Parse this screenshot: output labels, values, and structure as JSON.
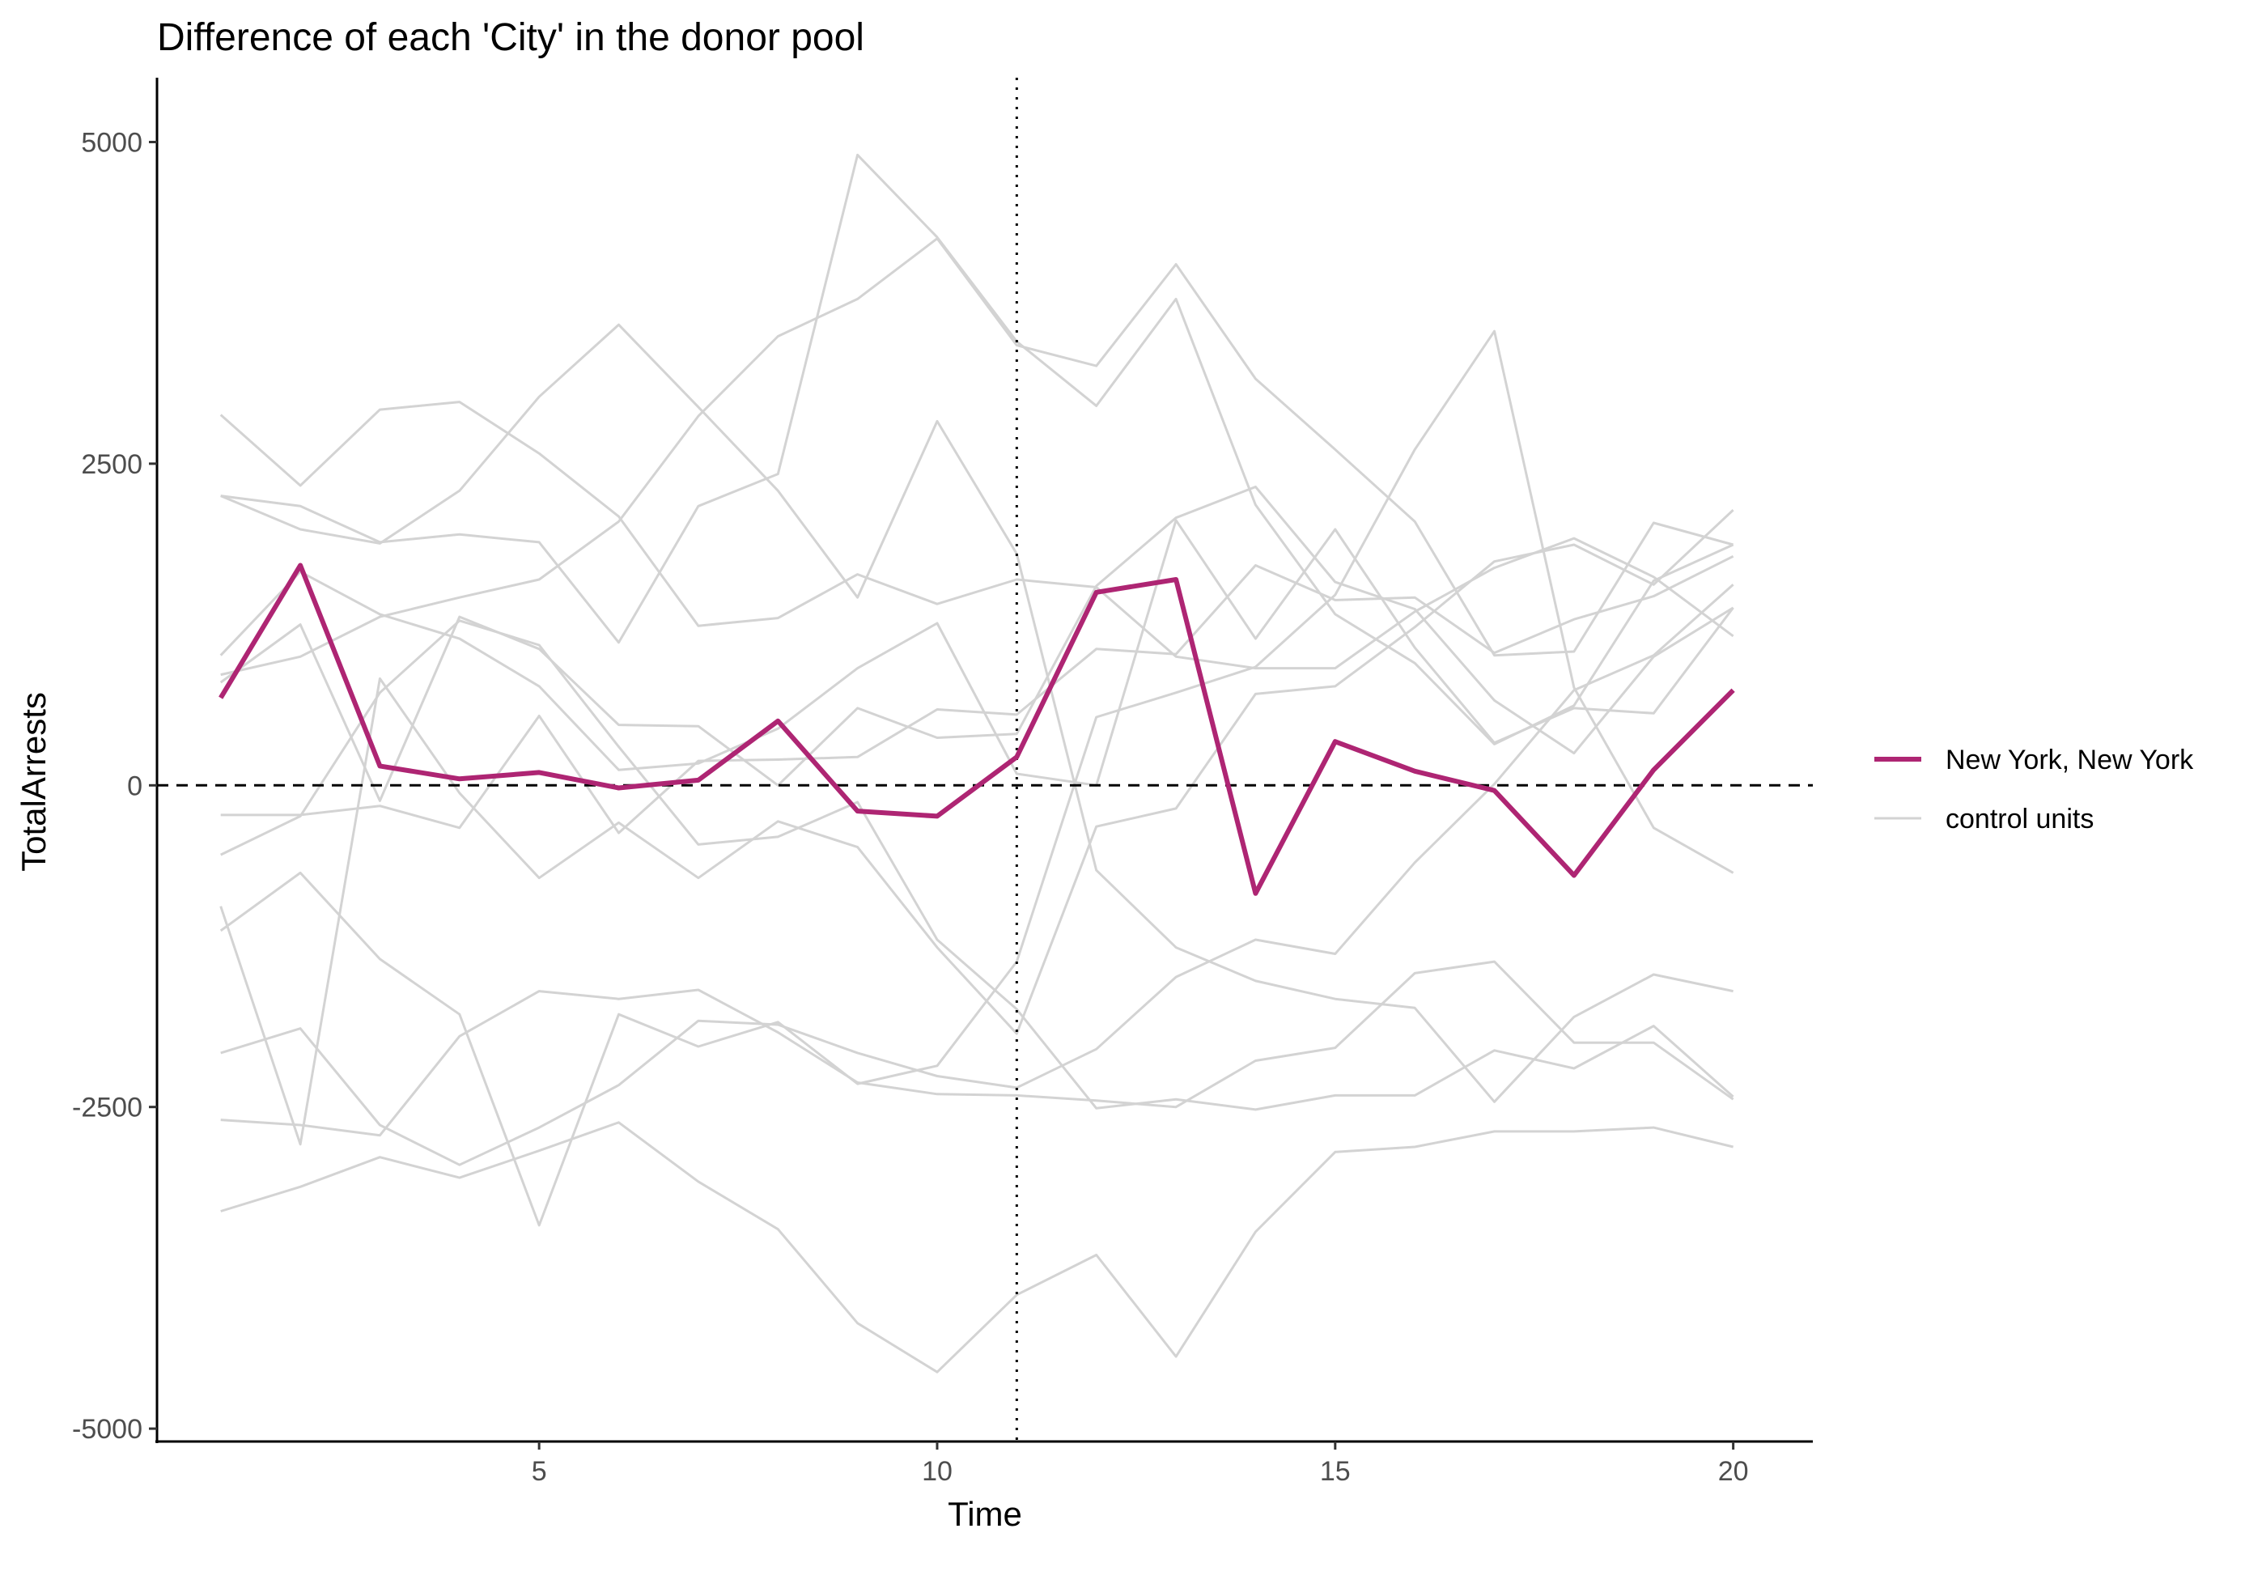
{
  "chart_data": {
    "type": "line",
    "title": "Difference of each 'City' in the donor pool",
    "xlabel": "Time",
    "ylabel": "TotalArrests",
    "xlim": [
      0.2,
      21.0
    ],
    "ylim": [
      -5100,
      5500
    ],
    "x_ticks": [
      5,
      10,
      15,
      20
    ],
    "y_ticks": [
      -5000,
      -2500,
      0,
      2500,
      5000
    ],
    "x_tick_labels": [
      "5",
      "10",
      "15",
      "20"
    ],
    "y_tick_labels": [
      "-5000",
      "-2500",
      "0",
      "2500",
      "5000"
    ],
    "grid": false,
    "legend_position": "right",
    "reference_lines": [
      {
        "orientation": "horizontal",
        "value": 0,
        "style": "dashed"
      },
      {
        "orientation": "vertical",
        "value": 11,
        "style": "dotted"
      }
    ],
    "x": [
      1,
      2,
      3,
      4,
      5,
      6,
      7,
      8,
      9,
      10,
      11,
      12,
      13,
      14,
      15,
      16,
      17,
      18,
      19,
      20
    ],
    "series": [
      {
        "name": "New York, New York",
        "color": "#ae2573",
        "values": [
          680,
          1710,
          150,
          50,
          100,
          -20,
          40,
          500,
          -200,
          -240,
          220,
          1500,
          1600,
          -840,
          340,
          110,
          -40,
          -700,
          120,
          740
        ]
      }
    ],
    "control_units": {
      "name": "control units",
      "color": "#d3d3d3",
      "series": [
        [
          2880,
          2330,
          2920,
          2980,
          2580,
          2090,
          1240,
          1300,
          1640,
          1410,
          1600,
          1540,
          1000,
          910,
          910,
          1350,
          1690,
          1920,
          1620,
          1160
        ],
        [
          2250,
          2170,
          1890,
          1950,
          1890,
          1110,
          2170,
          2420,
          4900,
          4260,
          3450,
          2950,
          3780,
          2180,
          1330,
          950,
          320,
          620,
          1590,
          1870
        ],
        [
          2250,
          1990,
          1880,
          2290,
          3020,
          3580,
          2940,
          2290,
          1460,
          2830,
          1800,
          -660,
          -1260,
          -1520,
          -1660,
          -1730,
          -2460,
          -1800,
          -1470,
          -1600
        ],
        [
          1010,
          1660,
          1330,
          1140,
          770,
          120,
          170,
          440,
          910,
          1260,
          90,
          0,
          2060,
          1140,
          1990,
          1070,
          330,
          600,
          560,
          1380
        ],
        [
          800,
          1250,
          -120,
          1310,
          1060,
          470,
          460,
          0,
          600,
          370,
          400,
          1550,
          2080,
          2320,
          1580,
          1370,
          660,
          250,
          1000,
          1380
        ],
        [
          860,
          1000,
          1310,
          1460,
          1600,
          2050,
          2870,
          3490,
          3780,
          4250,
          3420,
          3260,
          4050,
          3160,
          2610,
          2050,
          1010,
          1040,
          2040,
          1870
        ],
        [
          -230,
          -230,
          -160,
          -330,
          540,
          -370,
          190,
          200,
          220,
          590,
          550,
          1060,
          1020,
          1710,
          1440,
          1460,
          1030,
          1290,
          1470,
          1780
        ],
        [
          -540,
          -240,
          720,
          1280,
          1090,
          300,
          -460,
          -400,
          -130,
          -1200,
          -1740,
          -2510,
          -2440,
          -2520,
          -2410,
          -2410,
          -2060,
          -2200,
          -1870,
          -2420
        ],
        [
          -940,
          -2790,
          830,
          -60,
          -720,
          -290,
          -720,
          -280,
          -480,
          -1260,
          -1930,
          -320,
          -180,
          710,
          770,
          1230,
          1740,
          1870,
          1560,
          2140
        ],
        [
          -1130,
          -680,
          -1350,
          -1780,
          -3420,
          -1780,
          -2030,
          -1840,
          -2320,
          -2180,
          -1370,
          530,
          720,
          920,
          1480,
          2610,
          3530,
          760,
          -330,
          -680
        ],
        [
          -2080,
          -1890,
          -2640,
          -2950,
          -2660,
          -2330,
          -1830,
          -1860,
          -2080,
          -2260,
          -2350,
          -2050,
          -1490,
          -1200,
          -1310,
          -600,
          10,
          740,
          1010,
          1560
        ],
        [
          -2600,
          -2640,
          -2720,
          -1950,
          -1600,
          -1660,
          -1590,
          -1920,
          -2310,
          -2400,
          -2410,
          -2450,
          -2500,
          -2140,
          -2040,
          -1460,
          -1370,
          -2000,
          -2000,
          -2440
        ],
        [
          -3310,
          -3120,
          -2890,
          -3050,
          -2840,
          -2620,
          -3080,
          -3450,
          -4180,
          -4560,
          -3960,
          -3650,
          -4440,
          -3470,
          -2850,
          -2810,
          -2690,
          -2690,
          -2660,
          -2810
        ]
      ]
    }
  }
}
